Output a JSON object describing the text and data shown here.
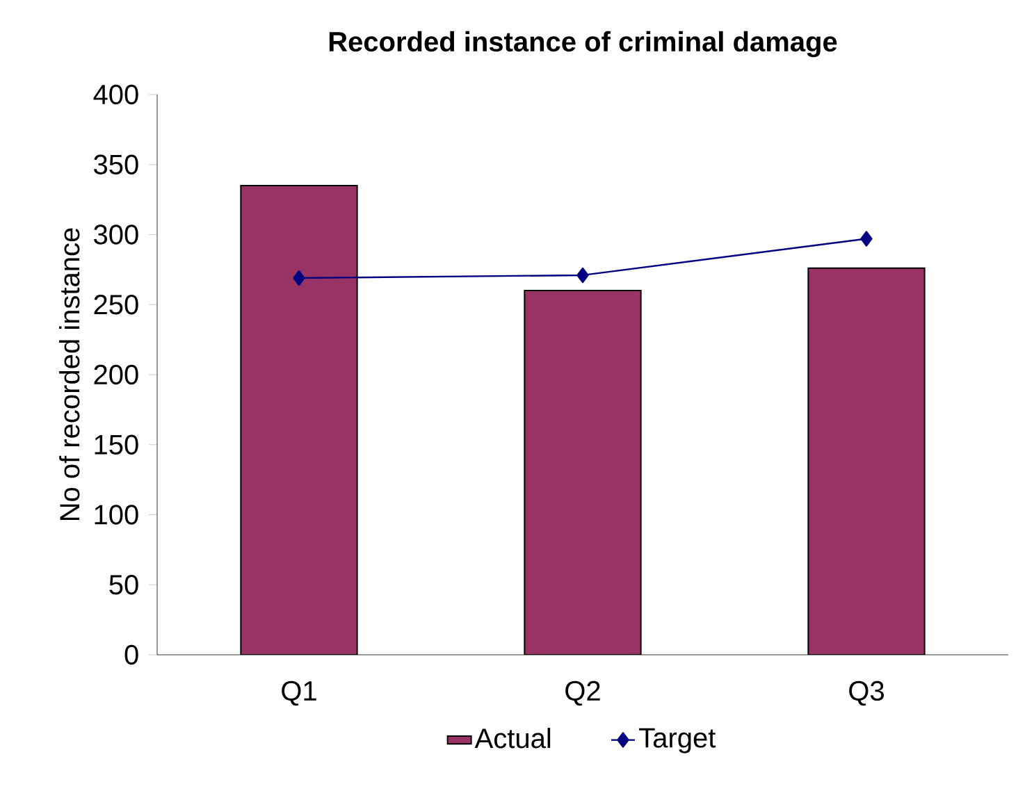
{
  "chart_data": {
    "type": "bar",
    "title": "Recorded instance of criminal damage",
    "ylabel": "No of recorded instance",
    "categories": [
      "Q1",
      "Q2",
      "Q3"
    ],
    "series": [
      {
        "name": "Actual",
        "color": "#993366",
        "values": [
          335,
          260,
          276
        ]
      },
      {
        "name": "Target",
        "type": "line",
        "color": "#000080",
        "marker": "diamond",
        "values": [
          269,
          271,
          297
        ]
      }
    ],
    "ylim": [
      0,
      400
    ],
    "yticks": [
      0,
      50,
      100,
      150,
      200,
      250,
      300,
      350,
      400
    ],
    "legend": "bottom"
  }
}
